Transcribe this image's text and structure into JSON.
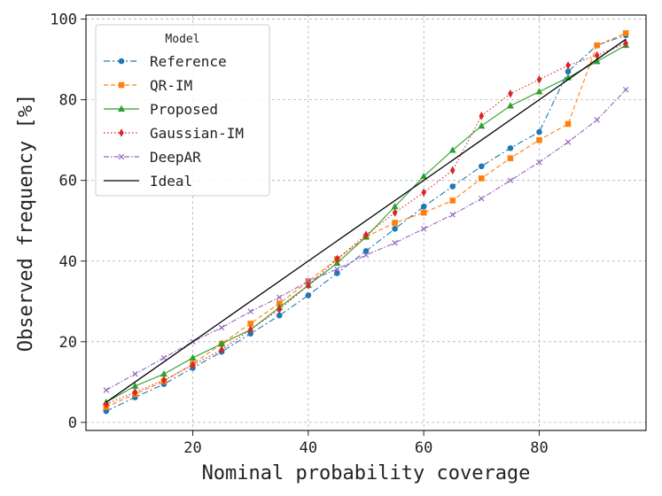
{
  "chart_data": {
    "type": "line",
    "title": "",
    "xlabel": "Nominal probability coverage",
    "ylabel": "Observed frequency [%]",
    "xlim": [
      1.5,
      98.5
    ],
    "ylim": [
      -2,
      101
    ],
    "xticks": [
      20,
      40,
      60,
      80
    ],
    "yticks": [
      0,
      20,
      40,
      60,
      80,
      100
    ],
    "grid": true,
    "legend": {
      "title": "Model",
      "position": "top-left"
    },
    "x": [
      5,
      10,
      15,
      20,
      25,
      30,
      35,
      40,
      45,
      50,
      55,
      60,
      65,
      70,
      75,
      80,
      85,
      90,
      95
    ],
    "series": [
      {
        "name": "Reference",
        "color": "#1f77b4",
        "dash": "7,3,2,3",
        "marker": "circle",
        "values": [
          2.8,
          6.2,
          9.5,
          13.5,
          17.5,
          22,
          26.5,
          31.5,
          37,
          42.5,
          48,
          53.5,
          58.5,
          63.5,
          68,
          72,
          87,
          93.5,
          96
        ]
      },
      {
        "name": "QR-IM",
        "color": "#ff7f0e",
        "dash": "5,3",
        "marker": "square",
        "values": [
          3.8,
          7,
          10.2,
          14.5,
          19.5,
          24.5,
          29.5,
          35,
          40.5,
          46,
          49.5,
          52,
          55,
          60.5,
          65.5,
          70,
          74,
          93.5,
          96.5
        ]
      },
      {
        "name": "Proposed",
        "color": "#2ca02c",
        "dash": "",
        "marker": "triangle",
        "values": [
          5,
          9,
          12,
          16,
          19.5,
          23,
          28.5,
          34,
          39.5,
          46,
          53.5,
          61,
          67.5,
          73.5,
          78.5,
          82,
          85.5,
          89.5,
          93.5
        ]
      },
      {
        "name": "Gaussian-IM",
        "color": "#d62728",
        "dash": "1.5,2.5",
        "marker": "diamond",
        "values": [
          4.5,
          7.5,
          10.5,
          14.2,
          18,
          23,
          28,
          34,
          40.5,
          46.5,
          52,
          57,
          62.5,
          76,
          81.5,
          85,
          88.5,
          91,
          94
        ]
      },
      {
        "name": "DeepAR",
        "color": "#9467bd",
        "dash": "6,2,1.5,2",
        "marker": "x",
        "values": [
          8,
          12,
          16,
          20,
          23.5,
          27.5,
          31,
          35,
          38,
          41.5,
          44.5,
          48,
          51.5,
          55.5,
          60,
          64.5,
          69.5,
          75,
          82.5
        ]
      },
      {
        "name": "Ideal",
        "color": "#000000",
        "dash": "",
        "marker": "none",
        "x": [
          5,
          95
        ],
        "values": [
          5,
          95
        ]
      }
    ]
  }
}
